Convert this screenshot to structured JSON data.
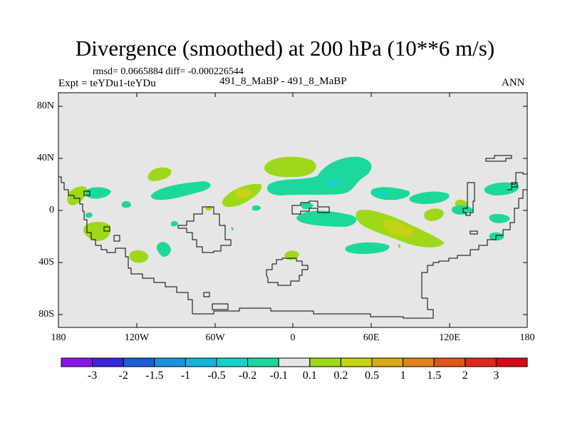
{
  "title": "Divergence (smoothed) at 200 hPa (10**6 m/s)",
  "stats_line": "rmsd= 0.0665884 diff= -0.000226544",
  "experiment": "Expt = teYDu1-teYDu",
  "cases": "491_8_MaBP - 491_8_MaBP",
  "season": "ANN",
  "lat_labels": [
    "80N",
    "40N",
    "0",
    "40S",
    "80S"
  ],
  "lon_labels": [
    "180",
    "120W",
    "60W",
    "0",
    "60E",
    "120E",
    "180"
  ],
  "colorbar": {
    "labels": [
      "-3",
      "-2",
      "-1.5",
      "-1",
      "-0.5",
      "-0.2",
      "-0.1",
      "0.1",
      "0.2",
      "0.5",
      "1",
      "1.5",
      "2",
      "3"
    ],
    "colors": [
      "#8a14e8",
      "#3a24d8",
      "#1a5ed8",
      "#1b93dc",
      "#17b4d8",
      "#1bd0cc",
      "#1dd89c",
      "#e6e6e6",
      "#9fd81a",
      "#c6d214",
      "#d8aa16",
      "#de8416",
      "#e0561a",
      "#dc2a1a",
      "#d60a16"
    ]
  },
  "colors": {
    "background": "#e6e6e6",
    "land_outline": "#000000",
    "positive_weak": "#9fd81a",
    "positive_mid": "#c6d214",
    "negative_weak": "#1dd89c",
    "negative_mid": "#1bd0cc"
  }
}
